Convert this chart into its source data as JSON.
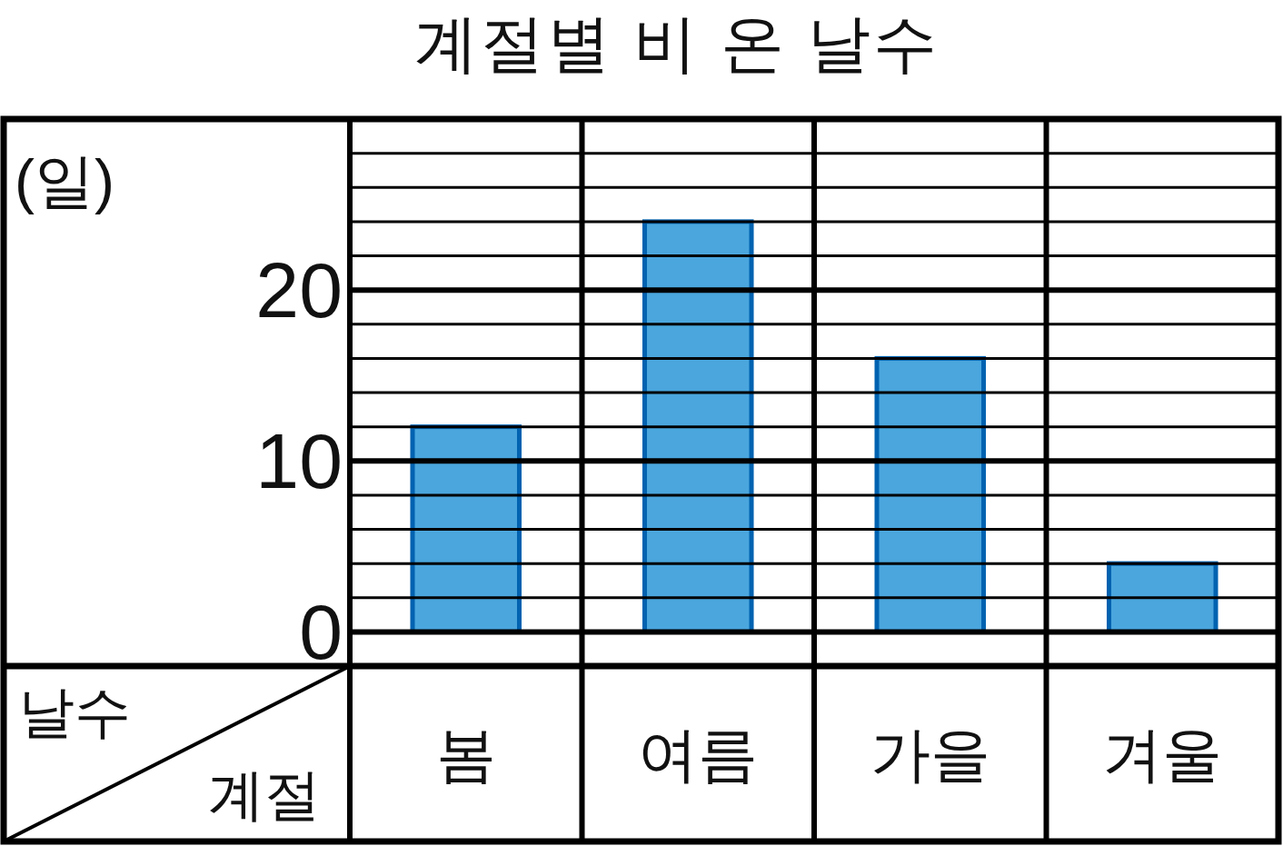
{
  "chart_data": {
    "type": "bar",
    "title": "계절별 비 온 날수",
    "xlabel": "계절",
    "ylabel": "날수",
    "annotations": [
      "(일)"
    ],
    "categories": [
      "봄",
      "여름",
      "가을",
      "겨울"
    ],
    "values": [
      12,
      24,
      16,
      4
    ],
    "color": "#4aa6dd",
    "ylim": [
      -2,
      30
    ],
    "yticks": [
      0,
      {
        "value": 2,
        "label": null
      },
      {
        "value": 4,
        "label": null
      },
      {
        "value": 6,
        "label": null
      },
      {
        "value": 8,
        "label": null
      },
      10,
      {
        "value": 12,
        "label": null
      },
      {
        "value": 14,
        "label": null
      },
      {
        "value": 16,
        "label": null
      },
      {
        "value": 18,
        "label": null
      },
      20,
      {
        "value": 22,
        "label": null
      },
      {
        "value": 24,
        "label": null
      },
      {
        "value": 26,
        "label": null
      },
      {
        "value": 28,
        "label": null
      }
    ],
    "grid": "y"
  }
}
